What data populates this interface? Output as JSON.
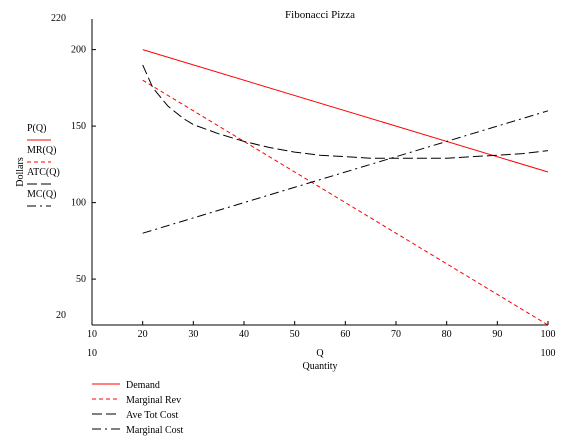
{
  "chart_data": {
    "type": "line",
    "title": "Fibonacci Pizza",
    "xlabel_var": "Q",
    "xlabel": "Quantity",
    "ylabel": "Dollars",
    "xlim": [
      10,
      100
    ],
    "ylim": [
      20,
      220
    ],
    "x_limit_labels": {
      "min": "10",
      "max": "100"
    },
    "y_limit_labels": {
      "min": "20",
      "max": "220"
    },
    "x_ticks": [
      10,
      20,
      30,
      40,
      50,
      60,
      70,
      80,
      90,
      100
    ],
    "y_ticks": [
      50,
      100,
      150,
      200
    ],
    "grid": false,
    "colors": {
      "red": "#ff0000",
      "black": "#000000"
    },
    "series": [
      {
        "var_label": "P(Q)",
        "legend": "Demand",
        "color": "#ff0000",
        "dash": "solid",
        "x": [
          20,
          100
        ],
        "values": [
          200,
          120
        ]
      },
      {
        "var_label": "MR(Q)",
        "legend": "Marginal Rev",
        "color": "#ff0000",
        "dash": "dash",
        "x": [
          20,
          100
        ],
        "values": [
          180,
          20
        ]
      },
      {
        "var_label": "ATC(Q)",
        "legend": "Ave Tot Cost",
        "color": "#000000",
        "dash": "longdash",
        "x": [
          20,
          22,
          25,
          28,
          30,
          35,
          40,
          45,
          50,
          55,
          60,
          65,
          70,
          75,
          80,
          85,
          90,
          95,
          100
        ],
        "values": [
          190,
          175,
          163,
          155,
          151,
          145,
          140,
          136,
          133,
          131,
          130,
          129,
          129,
          129,
          129,
          130,
          131,
          132,
          134
        ]
      },
      {
        "var_label": "MC(Q)",
        "legend": "Marginal Cost",
        "color": "#000000",
        "dash": "dashdot",
        "x": [
          20,
          100
        ],
        "values": [
          80,
          160
        ]
      }
    ]
  }
}
